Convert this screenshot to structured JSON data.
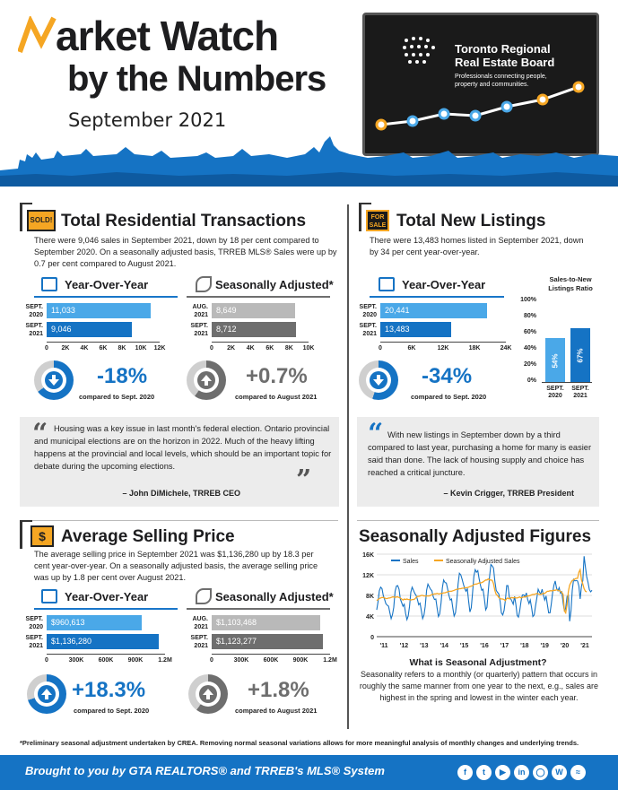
{
  "header": {
    "title_line1": "Market Watch",
    "title_line2": "by the Numbers",
    "month": "September 2021",
    "org_name_1": "Toronto Regional",
    "org_name_2": "Real Estate Board",
    "org_tag_1": "Professionals connecting people,",
    "org_tag_2": "property and communities.",
    "accent": "#f5a623",
    "brand_blue": "#1573c4"
  },
  "transactions": {
    "badge": "SOLD!",
    "title": "Total Residential Transactions",
    "text": "There were 9,046 sales in September 2021, down by 18 per cent compared to September 2020. On a seasonally adjusted basis, TRREB MLS® Sales were up by 0.7 per cent compared to August 2021.",
    "yoy": {
      "heading": "Year-Over-Year",
      "rows": [
        {
          "label1": "SEPT.",
          "label2": "2020",
          "value": "11,033",
          "num": 11033
        },
        {
          "label1": "SEPT.",
          "label2": "2021",
          "value": "9,046",
          "num": 9046
        }
      ],
      "ticks": [
        "0",
        "2K",
        "4K",
        "6K",
        "8K",
        "10K",
        "12K"
      ],
      "max": 12000,
      "change": "-18%",
      "change_sub": "compared to Sept. 2020"
    },
    "sa": {
      "heading": "Seasonally Adjusted*",
      "rows": [
        {
          "label1": "AUG.",
          "label2": "2021",
          "value": "8,649",
          "num": 8649
        },
        {
          "label1": "SEPT.",
          "label2": "2021",
          "value": "8,712",
          "num": 8712
        }
      ],
      "ticks": [
        "0",
        "2K",
        "4K",
        "6K",
        "8K",
        "10K"
      ],
      "max": 10000,
      "change": "+0.7%",
      "change_sub": "compared to August 2021"
    },
    "quote": "Housing was a key issue in last month's federal election. Ontario provincial and municipal elections are on the horizon in 2022. Much of the heavy lifting happens at the provincial and local levels, which should be an important topic for debate during the upcoming elections.",
    "quote_by": "– John DiMichele, TRREB CEO"
  },
  "listings": {
    "badge_1": "FOR",
    "badge_2": "SALE",
    "title": "Total New Listings",
    "text": "There were 13,483 homes listed in September 2021, down by 34 per cent year-over-year.",
    "yoy": {
      "heading": "Year-Over-Year",
      "rows": [
        {
          "label1": "SEPT.",
          "label2": "2020",
          "value": "20,441",
          "num": 20441
        },
        {
          "label1": "SEPT.",
          "label2": "2021",
          "value": "13,483",
          "num": 13483
        }
      ],
      "ticks": [
        "0",
        "6K",
        "12K",
        "18K",
        "24K"
      ],
      "max": 24000,
      "change": "-34%",
      "change_sub": "compared to Sept. 2020"
    },
    "snlr": {
      "title_1": "Sales-to-New",
      "title_2": "Listings Ratio",
      "yticks": [
        "100%",
        "80%",
        "60%",
        "40%",
        "20%",
        "0%"
      ],
      "bars": [
        {
          "value": "54%",
          "num": 54,
          "label1": "SEPT.",
          "label2": "2020"
        },
        {
          "value": "67%",
          "num": 67,
          "label1": "SEPT.",
          "label2": "2021"
        }
      ]
    },
    "quote": "With new listings in September down by a third compared to last year, purchasing a home for many is easier said than done. The lack of housing supply and choice has reached a critical juncture.",
    "quote_by": "– Kevin Crigger, TRREB President"
  },
  "price": {
    "badge": "$",
    "title": "Average Selling Price",
    "text": "The average selling price in September 2021 was $1,136,280 up by 18.3 per cent year-over-year. On a seasonally adjusted basis, the average selling price was up by 1.8 per cent over August 2021.",
    "yoy": {
      "heading": "Year-Over-Year",
      "rows": [
        {
          "label1": "SEPT.",
          "label2": "2020",
          "value": "$960,613",
          "num": 960613
        },
        {
          "label1": "SEPT.",
          "label2": "2021",
          "value": "$1,136,280",
          "num": 1136280
        }
      ],
      "ticks": [
        "0",
        "300K",
        "600K",
        "900K",
        "1.2M"
      ],
      "max": 1200000,
      "change": "+18.3%",
      "change_sub": "compared to Sept. 2020"
    },
    "sa": {
      "heading": "Seasonally Adjusted*",
      "rows": [
        {
          "label1": "AUG.",
          "label2": "2021",
          "value": "$1,103,468",
          "num": 1103468
        },
        {
          "label1": "SEPT.",
          "label2": "2021",
          "value": "$1,123,277",
          "num": 1123277
        }
      ],
      "ticks": [
        "0",
        "300K",
        "600K",
        "900K",
        "1.2M"
      ],
      "max": 1200000,
      "change": "+1.8%",
      "change_sub": "compared to August 2021"
    }
  },
  "seasonal": {
    "title": "Seasonally Adjusted Figures",
    "question": "What is Seasonal Adjustment?",
    "answer": "Seasonality refers to a monthly (or quarterly) pattern that occurs in roughly the same manner from one year to the next, e.g., sales are highest in the spring and lowest in the winter each year."
  },
  "chart_data": {
    "type": "line",
    "title": "",
    "xlabel": "",
    "ylabel": "",
    "ylim": [
      0,
      16000
    ],
    "yticks": [
      "0",
      "4K",
      "8K",
      "12K",
      "16K"
    ],
    "xticks": [
      "'11",
      "'12",
      "'13",
      "'14",
      "'15",
      "'16",
      "'17",
      "'18",
      "'19",
      "'20",
      "'21"
    ],
    "legend_position": "top",
    "series": [
      {
        "name": "Sales",
        "color": "#1573c4",
        "values": [
          5200,
          6800,
          8900,
          9600,
          9300,
          8000,
          7200,
          6400,
          6100,
          5900,
          4700,
          3500,
          4300,
          5700,
          8800,
          9800,
          9900,
          9200,
          7300,
          6600,
          5900,
          6300,
          4500,
          3300,
          4000,
          5900,
          8600,
          9600,
          9000,
          8400,
          8000,
          7200,
          6200,
          6500,
          5000,
          3500,
          4200,
          5900,
          9000,
          10200,
          9700,
          9200,
          8900,
          7800,
          7200,
          7300,
          5600,
          3900,
          4400,
          6500,
          9500,
          11000,
          10500,
          10400,
          9300,
          8000,
          7100,
          7300,
          5500,
          4000,
          4600,
          7000,
          10200,
          12300,
          12000,
          11200,
          10200,
          9400,
          8800,
          9300,
          7000,
          4800,
          5600,
          8400,
          11700,
          13000,
          12500,
          12800,
          11300,
          10000,
          9000,
          9200,
          7400,
          5200,
          5700,
          8900,
          11800,
          14000,
          13700,
          13300,
          10800,
          9000,
          8600,
          8300,
          6800,
          4600,
          4200,
          5100,
          7000,
          9900,
          9900,
          7700,
          7400,
          6900,
          6300,
          7800,
          6300,
          4100,
          3800,
          5100,
          7000,
          8100,
          8100,
          7700,
          8500,
          7200,
          6400,
          7100,
          5600,
          3900,
          4200,
          6000,
          7500,
          9200,
          8600,
          8300,
          9200,
          8000,
          7100,
          7900,
          6300,
          4600,
          4600,
          6300,
          8500,
          10000,
          10800,
          9400,
          8900,
          9500,
          8400,
          8700,
          6600,
          4900,
          5600,
          7800,
          8000,
          3000,
          5000,
          9000,
          11100,
          10800,
          10900,
          10800,
          9800,
          7300,
          9800,
          10900,
          15600,
          13500,
          11600,
          10500,
          9100,
          8700,
          9000
        ]
      },
      {
        "name": "Seasonally Adjusted Sales",
        "color": "#f5a623",
        "values": [
          7000,
          7200,
          7400,
          7500,
          7600,
          7600,
          7500,
          7400,
          7400,
          7500,
          7500,
          7600,
          7700,
          7700,
          7600,
          7700,
          7700,
          7600,
          7500,
          7300,
          7100,
          7300,
          7200,
          7300,
          7200,
          7200,
          7100,
          7200,
          7200,
          7300,
          7600,
          7800,
          7800,
          7900,
          8000,
          8000,
          7900,
          7900,
          7900,
          7900,
          7900,
          8000,
          8200,
          8200,
          8300,
          8300,
          8400,
          8300,
          8300,
          8400,
          8400,
          8500,
          8500,
          8600,
          8700,
          8800,
          8800,
          8800,
          8900,
          9000,
          9100,
          9200,
          9200,
          9300,
          9300,
          9400,
          9400,
          9500,
          9500,
          9500,
          9600,
          9700,
          9800,
          9900,
          10100,
          10200,
          10200,
          10300,
          10400,
          10400,
          10500,
          10600,
          10800,
          11000,
          11000,
          11200,
          11000,
          11000,
          10900,
          10300,
          9000,
          8200,
          8000,
          7600,
          7400,
          7300,
          7300,
          7200,
          7000,
          7400,
          7500,
          7300,
          7500,
          7600,
          7500,
          7600,
          7500,
          7500,
          7600,
          7700,
          7500,
          7600,
          7700,
          7700,
          7800,
          7900,
          7900,
          8000,
          8100,
          8200,
          8200,
          8300,
          8400,
          8300,
          8200,
          8200,
          8300,
          8400,
          8400,
          8600,
          8800,
          8800,
          8900,
          8900,
          8900,
          9000,
          9000,
          9100,
          9000,
          8900,
          8800,
          8600,
          8200,
          5000,
          4600,
          6200,
          8800,
          10000,
          10500,
          10900,
          11000,
          11200,
          11300,
          11300,
          12500,
          13000,
          11000,
          10200,
          9300,
          8800,
          8700
        ]
      }
    ]
  },
  "footer": {
    "note": "*Preliminary seasonal adjustment undertaken by CREA. Removing normal seasonal variations allows for more meaningful analysis of monthly changes and underlying trends.",
    "tagline": "Brought to you by GTA REALTORS® and TRREB's MLS® System",
    "social": [
      "f",
      "t",
      "y",
      "in",
      "ig",
      "wp",
      "wf"
    ]
  }
}
